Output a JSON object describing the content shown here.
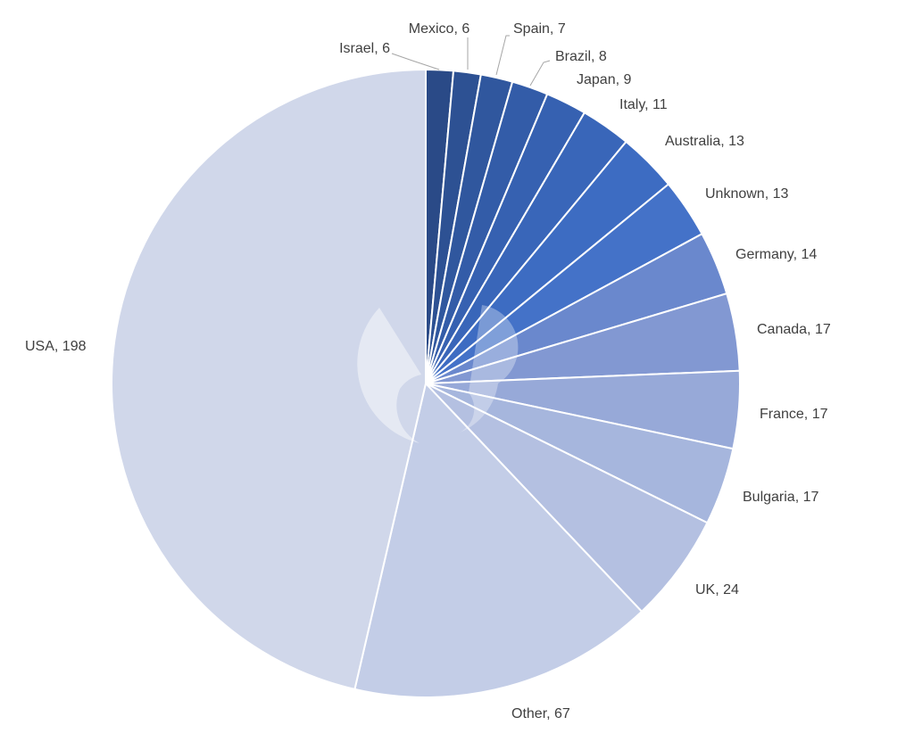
{
  "chart_data": {
    "type": "pie",
    "title": "",
    "start_angle_deg": 0,
    "direction": "clockwise",
    "slices": [
      {
        "label": "Israel",
        "value": 6,
        "color": "#2a4a87"
      },
      {
        "label": "Mexico",
        "value": 6,
        "color": "#2d5193"
      },
      {
        "label": "Spain",
        "value": 7,
        "color": "#30579e"
      },
      {
        "label": "Brazil",
        "value": 8,
        "color": "#335ca8"
      },
      {
        "label": "Japan",
        "value": 9,
        "color": "#3661b1"
      },
      {
        "label": "Italy",
        "value": 11,
        "color": "#3966b9"
      },
      {
        "label": "Australia",
        "value": 13,
        "color": "#3d6cc2"
      },
      {
        "label": "Unknown",
        "value": 13,
        "color": "#4472c8"
      },
      {
        "label": "Germany",
        "value": 14,
        "color": "#6a88cd"
      },
      {
        "label": "Canada",
        "value": 17,
        "color": "#8298d2"
      },
      {
        "label": "France",
        "value": 17,
        "color": "#97a9d8"
      },
      {
        "label": "Bulgaria",
        "value": 17,
        "color": "#a6b6dd"
      },
      {
        "label": "UK",
        "value": 24,
        "color": "#b4c0e1"
      },
      {
        "label": "Other",
        "value": 67,
        "color": "#c3cde7"
      },
      {
        "label": "USA",
        "value": 198,
        "color": "#d0d7ea"
      }
    ],
    "data_labels": [
      "Israel, 6",
      "Mexico, 6",
      "Spain, 7",
      "Brazil, 8",
      "Japan, 9",
      "Italy, 11",
      "Australia, 13",
      "Unknown, 13",
      "Germany, 14",
      "Canada, 17",
      "France, 17",
      "Bulgaria, 17",
      "UK, 24",
      "Other, 67",
      "USA, 198"
    ]
  }
}
